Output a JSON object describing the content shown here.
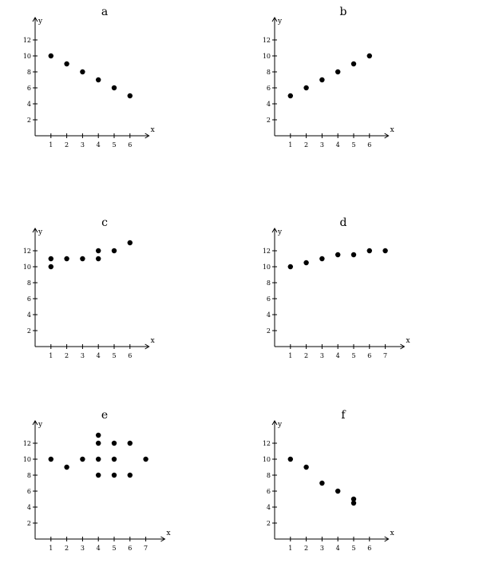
{
  "chart_data": [
    {
      "type": "scatter",
      "title": "a",
      "xlabel": "x",
      "ylabel": "y",
      "xticks": [
        1,
        2,
        3,
        4,
        5,
        6
      ],
      "yticks": [
        2,
        4,
        6,
        8,
        10,
        12
      ],
      "xlim": [
        0,
        6.8
      ],
      "ylim": [
        0,
        14
      ],
      "points": [
        [
          1,
          10
        ],
        [
          2,
          9
        ],
        [
          3,
          8
        ],
        [
          4,
          7
        ],
        [
          5,
          6
        ],
        [
          6,
          5
        ]
      ]
    },
    {
      "type": "scatter",
      "title": "b",
      "xlabel": "x",
      "ylabel": "y",
      "xticks": [
        1,
        2,
        3,
        4,
        5,
        6
      ],
      "yticks": [
        2,
        4,
        6,
        8,
        10,
        12
      ],
      "xlim": [
        0,
        6.8
      ],
      "ylim": [
        0,
        14
      ],
      "points": [
        [
          1,
          5
        ],
        [
          2,
          6
        ],
        [
          3,
          7
        ],
        [
          4,
          8
        ],
        [
          5,
          9
        ],
        [
          6,
          10
        ]
      ]
    },
    {
      "type": "scatter",
      "title": "c",
      "xlabel": "x",
      "ylabel": "y",
      "xticks": [
        1,
        2,
        3,
        4,
        5,
        6
      ],
      "yticks": [
        2,
        4,
        6,
        8,
        10,
        12
      ],
      "xlim": [
        0,
        6.8
      ],
      "ylim": [
        0,
        14
      ],
      "points": [
        [
          1,
          11
        ],
        [
          1,
          10
        ],
        [
          2,
          11
        ],
        [
          3,
          11
        ],
        [
          4,
          12
        ],
        [
          4,
          11
        ],
        [
          5,
          12
        ],
        [
          6,
          13
        ]
      ]
    },
    {
      "type": "scatter",
      "title": "d",
      "xlabel": "x",
      "ylabel": "y",
      "xticks": [
        1,
        2,
        3,
        4,
        5,
        6,
        7
      ],
      "yticks": [
        2,
        4,
        6,
        8,
        10,
        12
      ],
      "xlim": [
        0,
        7.8
      ],
      "ylim": [
        0,
        14
      ],
      "points": [
        [
          1,
          10
        ],
        [
          2,
          10.5
        ],
        [
          3,
          11
        ],
        [
          4,
          11.5
        ],
        [
          5,
          11.5
        ],
        [
          6,
          12
        ],
        [
          7,
          12
        ]
      ]
    },
    {
      "type": "scatter",
      "title": "e",
      "xlabel": "x",
      "ylabel": "y",
      "xticks": [
        1,
        2,
        3,
        4,
        5,
        6,
        7
      ],
      "yticks": [
        2,
        4,
        6,
        8,
        10,
        12
      ],
      "xlim": [
        0,
        7.8
      ],
      "ylim": [
        0,
        14
      ],
      "points": [
        [
          1,
          10
        ],
        [
          2,
          9
        ],
        [
          3,
          10
        ],
        [
          4,
          13
        ],
        [
          4,
          12
        ],
        [
          4,
          10
        ],
        [
          4,
          8
        ],
        [
          5,
          12
        ],
        [
          5,
          10
        ],
        [
          5,
          8
        ],
        [
          6,
          12
        ],
        [
          6,
          8
        ],
        [
          7,
          10
        ]
      ]
    },
    {
      "type": "scatter",
      "title": "f",
      "xlabel": "x",
      "ylabel": "y",
      "xticks": [
        1,
        2,
        3,
        4,
        5,
        6
      ],
      "yticks": [
        2,
        4,
        6,
        8,
        10,
        12
      ],
      "xlim": [
        0,
        6.8
      ],
      "ylim": [
        0,
        14
      ],
      "points": [
        [
          1,
          10
        ],
        [
          2,
          9
        ],
        [
          3,
          7
        ],
        [
          4,
          6
        ],
        [
          5,
          5
        ],
        [
          5,
          4.5
        ]
      ]
    }
  ]
}
